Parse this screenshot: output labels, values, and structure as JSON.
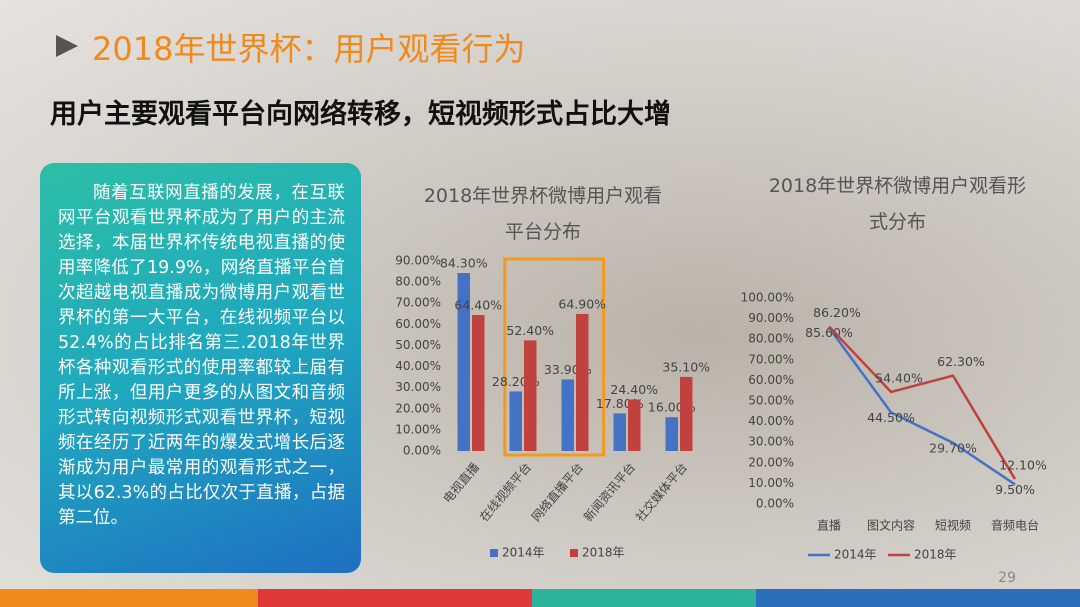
{
  "header": {
    "title": "2018年世界杯：用户观看行为",
    "subtitle": "用户主要观看平台向网络转移，短视频形式占比大增"
  },
  "body_text": "随着互联网直播的发展，在互联网平台观看世界杯成为了用户的主流选择，本届世界杯传统电视直播的使用率降低了19.9%，网络直播平台首次超越电视直播成为微博用户观看世界杯的第一大平台，在线视频平台以52.4%的占比排名第三.2018年世界杯各种观看形式的使用率都较上届有所上涨，但用户更多的从图文和音频形式转向视频形式观看世界杯，短视频在经历了近两年的爆发式增长后逐渐成为用户最常用的观看形式之一，其以62.3%的占比仅次于直播，占据第二位。",
  "page_number": "29",
  "chart_data": [
    {
      "type": "bar",
      "title": "2018年世界杯微博用户观看平台分布",
      "categories": [
        "电视直播",
        "在线视频平台",
        "网络直播平台",
        "新闻资讯平台",
        "社交媒体平台"
      ],
      "series": [
        {
          "name": "2014年",
          "color": "#4472c4",
          "values": [
            84.3,
            28.2,
            33.9,
            17.8,
            16.0
          ],
          "value_labels": [
            "84.30%",
            "28.20%",
            "33.90%",
            "17.80%",
            "16.00%"
          ]
        },
        {
          "name": "2018年",
          "color": "#c0413d",
          "values": [
            64.4,
            52.4,
            64.9,
            24.4,
            35.1
          ],
          "value_labels": [
            "64.40%",
            "52.40%",
            "64.90%",
            "24.40%",
            "35.10%"
          ]
        }
      ],
      "ylim": [
        0,
        90
      ],
      "yticks": [
        {
          "value": 0,
          "label": "0.00%"
        },
        {
          "value": 10,
          "label": "10.00%"
        },
        {
          "value": 20,
          "label": "20.00%"
        },
        {
          "value": 30,
          "label": "30.00%"
        },
        {
          "value": 40,
          "label": "40.00%"
        },
        {
          "value": 50,
          "label": "50.00%"
        },
        {
          "value": 60,
          "label": "60.00%"
        },
        {
          "value": 70,
          "label": "70.00%"
        },
        {
          "value": 80,
          "label": "80.00%"
        },
        {
          "value": 90,
          "label": "90.00%"
        }
      ],
      "legend": "bottom"
    },
    {
      "type": "line",
      "title": "2018年世界杯微博用户观看形式分布",
      "categories": [
        "直播",
        "图文内容",
        "短视频",
        "音频电台"
      ],
      "series": [
        {
          "name": "2014年",
          "color": "#4472c4",
          "values": [
            85.6,
            44.5,
            29.7,
            9.5
          ],
          "value_labels": [
            "85.60%",
            "44.50%",
            "29.70%",
            "9.50%"
          ]
        },
        {
          "name": "2018年",
          "color": "#c0413d",
          "values": [
            86.2,
            54.4,
            62.3,
            12.1
          ],
          "value_labels": [
            "86.20%",
            "54.40%",
            "62.30%",
            "12.10%"
          ]
        }
      ],
      "ylim": [
        0,
        100
      ],
      "yticks": [
        {
          "value": 0,
          "label": "0.00%"
        },
        {
          "value": 10,
          "label": "10.00%"
        },
        {
          "value": 20,
          "label": "20.00%"
        },
        {
          "value": 30,
          "label": "30.00%"
        },
        {
          "value": 40,
          "label": "40.00%"
        },
        {
          "value": 50,
          "label": "50.00%"
        },
        {
          "value": 60,
          "label": "60.00%"
        },
        {
          "value": 70,
          "label": "70.00%"
        },
        {
          "value": 80,
          "label": "80.00%"
        },
        {
          "value": 90,
          "label": "90.00%"
        },
        {
          "value": 100,
          "label": "100.00%"
        }
      ],
      "legend": "bottom"
    }
  ]
}
